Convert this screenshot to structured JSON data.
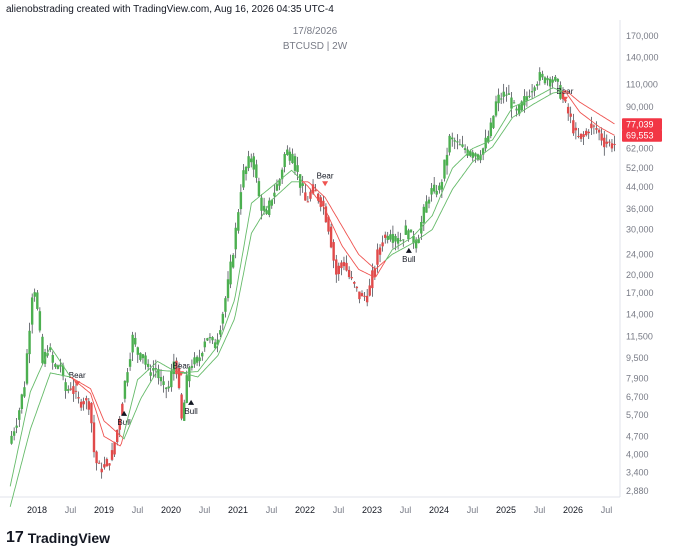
{
  "header": {
    "credit": "alienobstrading created with TradingView.com, Aug 16, 2026 04:35 UTC-4",
    "date_label": "17/8/2026",
    "symbol_label": "BTCUSD | 2W"
  },
  "footer": {
    "logo_glyph": "17",
    "brand": "TradingView"
  },
  "colors": {
    "up": "#26a69a",
    "green_candle": "#4caf50",
    "down": "#e04a4a",
    "ma_green": "#66bb6a",
    "ma_red": "#ef5350",
    "price_badge": "#f23645"
  },
  "chart_data": {
    "type": "candlestick",
    "title": "17/8/2026",
    "subtitle": "BTCUSD | 2W",
    "y_scale": "log",
    "y_range": [
      2400,
      175000
    ],
    "x_range": [
      2017.6,
      2026.75
    ],
    "y_ticks": [
      "170,000",
      "140,000",
      "110,000",
      "90,000",
      "72,000",
      "62,000",
      "52,000",
      "44,000",
      "36,000",
      "30,000",
      "24,000",
      "20,000",
      "17,000",
      "14,000",
      "11,500",
      "9,500",
      "7,900",
      "6,700",
      "5,700",
      "4,700",
      "4,000",
      "3,400",
      "2,880"
    ],
    "x_ticks": [
      {
        "label": "2018",
        "t": 2018.0
      },
      {
        "label": "Jul",
        "t": 2018.5
      },
      {
        "label": "2019",
        "t": 2019.0
      },
      {
        "label": "Jul",
        "t": 2019.5
      },
      {
        "label": "2020",
        "t": 2020.0
      },
      {
        "label": "Jul",
        "t": 2020.5
      },
      {
        "label": "2021",
        "t": 2021.0
      },
      {
        "label": "Jul",
        "t": 2021.5
      },
      {
        "label": "2022",
        "t": 2022.0
      },
      {
        "label": "Jul",
        "t": 2022.5
      },
      {
        "label": "2023",
        "t": 2023.0
      },
      {
        "label": "Jul",
        "t": 2023.5
      },
      {
        "label": "2024",
        "t": 2024.0
      },
      {
        "label": "Jul",
        "t": 2024.5
      },
      {
        "label": "2025",
        "t": 2025.0
      },
      {
        "label": "Jul",
        "t": 2025.5
      },
      {
        "label": "2026",
        "t": 2026.0
      },
      {
        "label": "Jul",
        "t": 2026.5
      }
    ],
    "price_path": [
      [
        2017.62,
        4400
      ],
      [
        2017.75,
        5600
      ],
      [
        2017.85,
        7500
      ],
      [
        2017.93,
        13000
      ],
      [
        2017.98,
        19000
      ],
      [
        2018.05,
        14000
      ],
      [
        2018.12,
        9000
      ],
      [
        2018.2,
        10500
      ],
      [
        2018.3,
        8500
      ],
      [
        2018.38,
        9200
      ],
      [
        2018.45,
        7000
      ],
      [
        2018.55,
        7400
      ],
      [
        2018.65,
        6400
      ],
      [
        2018.75,
        6500
      ],
      [
        2018.83,
        6300
      ],
      [
        2018.88,
        4200
      ],
      [
        2018.95,
        3500
      ],
      [
        2019.05,
        3600
      ],
      [
        2019.15,
        3900
      ],
      [
        2019.25,
        5200
      ],
      [
        2019.38,
        8500
      ],
      [
        2019.47,
        11500
      ],
      [
        2019.52,
        10000
      ],
      [
        2019.62,
        9700
      ],
      [
        2019.7,
        8300
      ],
      [
        2019.8,
        8800
      ],
      [
        2019.9,
        7300
      ],
      [
        2020.0,
        7200
      ],
      [
        2020.1,
        9800
      ],
      [
        2020.2,
        5300
      ],
      [
        2020.3,
        8800
      ],
      [
        2020.45,
        9300
      ],
      [
        2020.55,
        11500
      ],
      [
        2020.7,
        10700
      ],
      [
        2020.8,
        13800
      ],
      [
        2020.9,
        19000
      ],
      [
        2021.0,
        29000
      ],
      [
        2021.1,
        48000
      ],
      [
        2021.25,
        59000
      ],
      [
        2021.35,
        40000
      ],
      [
        2021.45,
        33000
      ],
      [
        2021.55,
        41000
      ],
      [
        2021.65,
        46000
      ],
      [
        2021.75,
        61000
      ],
      [
        2021.85,
        58000
      ],
      [
        2021.95,
        47000
      ],
      [
        2022.05,
        38000
      ],
      [
        2022.15,
        43000
      ],
      [
        2022.3,
        38000
      ],
      [
        2022.4,
        30000
      ],
      [
        2022.5,
        20000
      ],
      [
        2022.6,
        23000
      ],
      [
        2022.7,
        19500
      ],
      [
        2022.85,
        16500
      ],
      [
        2022.98,
        16600
      ],
      [
        2023.1,
        23000
      ],
      [
        2023.2,
        28000
      ],
      [
        2023.3,
        29000
      ],
      [
        2023.45,
        27000
      ],
      [
        2023.55,
        30000
      ],
      [
        2023.7,
        26500
      ],
      [
        2023.8,
        34000
      ],
      [
        2023.9,
        42000
      ],
      [
        2024.05,
        43000
      ],
      [
        2024.2,
        68000
      ],
      [
        2024.35,
        63000
      ],
      [
        2024.5,
        60000
      ],
      [
        2024.65,
        58000
      ],
      [
        2024.8,
        72000
      ],
      [
        2024.9,
        96000
      ],
      [
        2025.05,
        102000
      ],
      [
        2025.2,
        84000
      ],
      [
        2025.3,
        94000
      ],
      [
        2025.4,
        105000
      ],
      [
        2025.55,
        118000
      ],
      [
        2025.7,
        115000
      ],
      [
        2025.8,
        112000
      ],
      [
        2025.88,
        97000
      ],
      [
        2025.95,
        87000
      ],
      [
        2026.02,
        78000
      ],
      [
        2026.1,
        67000
      ],
      [
        2026.2,
        70000
      ],
      [
        2026.3,
        76000
      ],
      [
        2026.4,
        73000
      ],
      [
        2026.5,
        66000
      ],
      [
        2026.58,
        65000
      ],
      [
        2026.63,
        64500
      ]
    ],
    "ma_fast": [
      [
        2017.6,
        3000
      ],
      [
        2017.9,
        7000
      ],
      [
        2018.2,
        10500
      ],
      [
        2018.5,
        8000
      ],
      [
        2018.8,
        6900
      ],
      [
        2019.0,
        4700
      ],
      [
        2019.25,
        4300
      ],
      [
        2019.5,
        7800
      ],
      [
        2019.8,
        9200
      ],
      [
        2020.1,
        8300
      ],
      [
        2020.4,
        8400
      ],
      [
        2020.7,
        10600
      ],
      [
        2020.95,
        16000
      ],
      [
        2021.2,
        38000
      ],
      [
        2021.5,
        44000
      ],
      [
        2021.8,
        51000
      ],
      [
        2022.05,
        44000
      ],
      [
        2022.3,
        36000
      ],
      [
        2022.55,
        26000
      ],
      [
        2022.8,
        21000
      ],
      [
        2023.05,
        19500
      ],
      [
        2023.3,
        25000
      ],
      [
        2023.6,
        28000
      ],
      [
        2023.9,
        34000
      ],
      [
        2024.2,
        52000
      ],
      [
        2024.5,
        62000
      ],
      [
        2024.8,
        67000
      ],
      [
        2025.1,
        90000
      ],
      [
        2025.4,
        97000
      ],
      [
        2025.7,
        107000
      ],
      [
        2025.9,
        102000
      ],
      [
        2026.1,
        86000
      ],
      [
        2026.4,
        75000
      ],
      [
        2026.63,
        69553
      ]
    ],
    "ma_slow": [
      [
        2017.6,
        2500
      ],
      [
        2017.9,
        5000
      ],
      [
        2018.2,
        8300
      ],
      [
        2018.5,
        8000
      ],
      [
        2018.8,
        7200
      ],
      [
        2019.0,
        5400
      ],
      [
        2019.3,
        4600
      ],
      [
        2019.55,
        6600
      ],
      [
        2019.8,
        8500
      ],
      [
        2020.1,
        8400
      ],
      [
        2020.4,
        8000
      ],
      [
        2020.7,
        9700
      ],
      [
        2020.95,
        13500
      ],
      [
        2021.2,
        29000
      ],
      [
        2021.5,
        39000
      ],
      [
        2021.8,
        46000
      ],
      [
        2022.05,
        46000
      ],
      [
        2022.3,
        40000
      ],
      [
        2022.55,
        31000
      ],
      [
        2022.8,
        24000
      ],
      [
        2023.05,
        21000
      ],
      [
        2023.3,
        24000
      ],
      [
        2023.6,
        26500
      ],
      [
        2023.9,
        30000
      ],
      [
        2024.2,
        43000
      ],
      [
        2024.5,
        55000
      ],
      [
        2024.8,
        63000
      ],
      [
        2025.1,
        82000
      ],
      [
        2025.4,
        92000
      ],
      [
        2025.7,
        102000
      ],
      [
        2025.9,
        104000
      ],
      [
        2026.1,
        94000
      ],
      [
        2026.4,
        84000
      ],
      [
        2026.63,
        77039
      ]
    ],
    "signals": [
      {
        "label": "Bear",
        "t": 2018.6,
        "price": 7500,
        "type": "bear"
      },
      {
        "label": "Bull",
        "t": 2019.3,
        "price": 5800,
        "type": "bull"
      },
      {
        "label": "Bear",
        "t": 2020.15,
        "price": 8200,
        "type": "bear"
      },
      {
        "label": "Bull",
        "t": 2020.3,
        "price": 6400,
        "type": "bull"
      },
      {
        "label": "Bear",
        "t": 2022.3,
        "price": 45000,
        "type": "bear"
      },
      {
        "label": "Bull",
        "t": 2023.55,
        "price": 25000,
        "type": "bull"
      },
      {
        "label": "Bear",
        "t": 2025.88,
        "price": 96000,
        "type": "bear"
      }
    ],
    "price_labels": [
      {
        "value": "77,039",
        "price": 77039
      },
      {
        "value": "69,553",
        "price": 69553
      }
    ]
  }
}
